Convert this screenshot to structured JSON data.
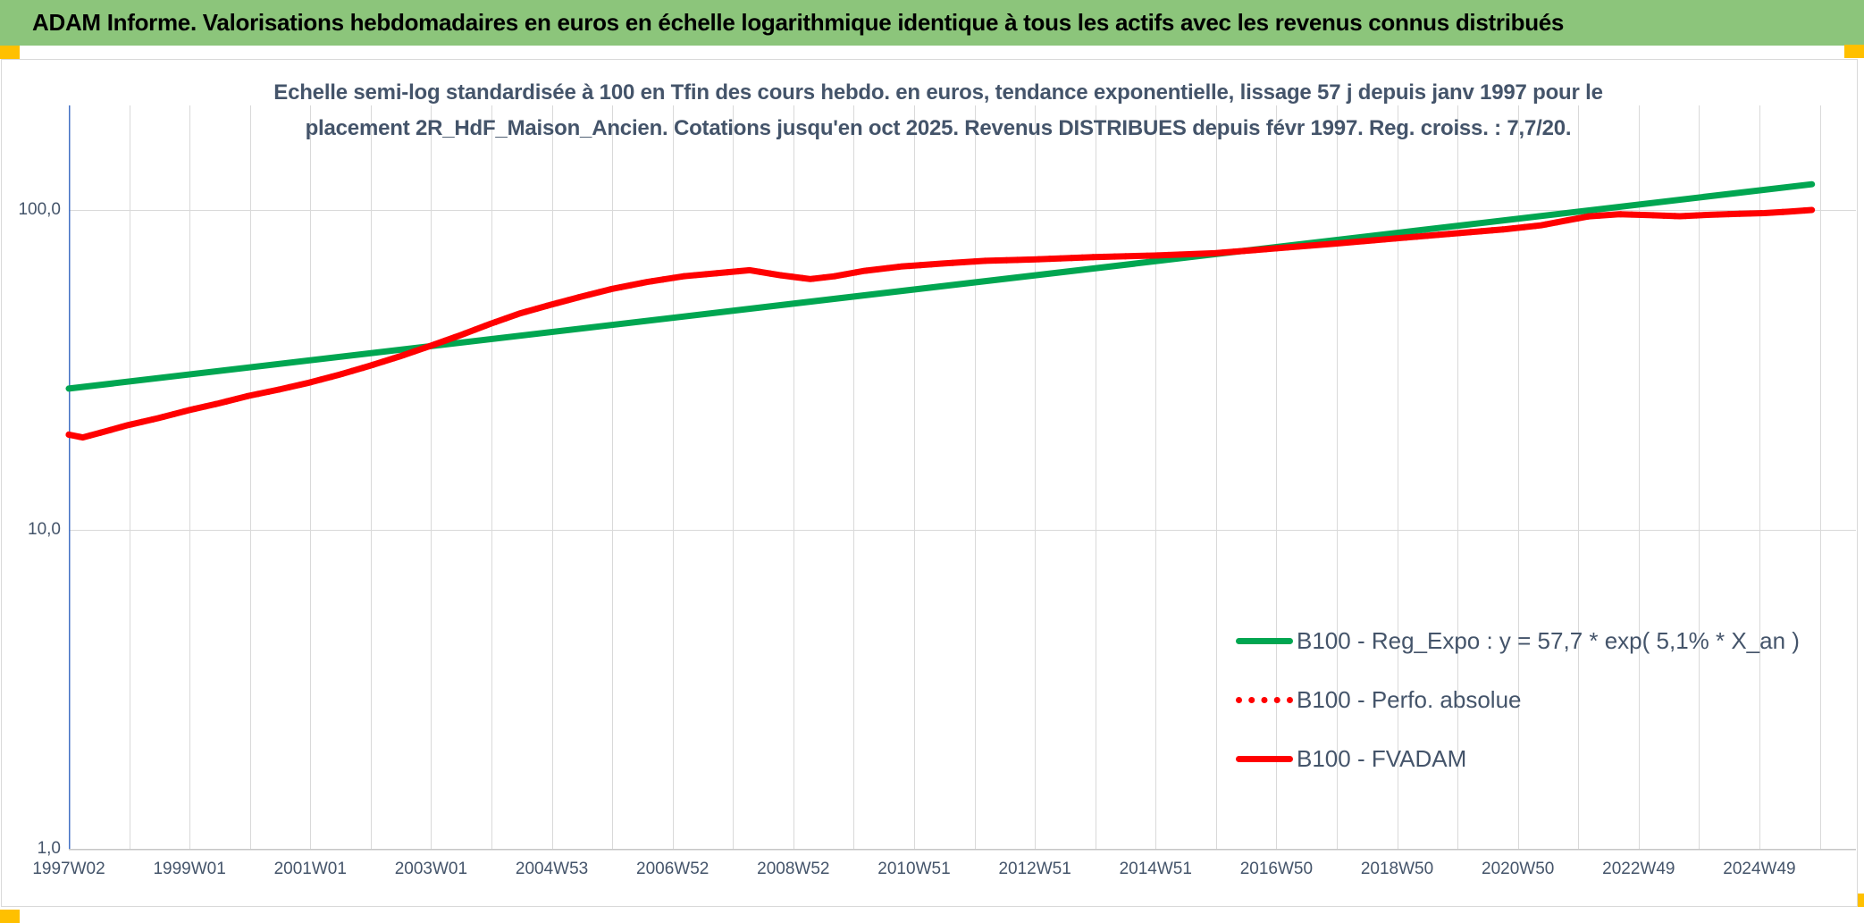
{
  "header": {
    "title": "ADAM Informe. Valorisations hebdomadaires en euros en échelle logarithmique identique à tous les actifs avec les revenus connus distribués"
  },
  "colors": {
    "header_bar": "#8CC57B",
    "corner_marker_gold": "#FFC000",
    "chart_text": "#44546A",
    "gridline": "#D9D9D9",
    "y_axis_line": "#4472C4",
    "baseline": "#C6C6C6",
    "regression_green": "#00A651",
    "series_red": "#FF0000"
  },
  "chart_data": {
    "type": "line",
    "title_line1": "Echelle semi-log standardisée à 100 en Tfin des cours hebdo. en euros, tendance exponentielle, lissage 57 j depuis janv 1997 pour le",
    "title_line2": "placement 2R_HdF_Maison_Ancien. Cotations jusqu'en oct 2025. Revenus DISTRIBUES depuis févr 1997. Reg. croiss. : 7,7/20.",
    "y_axis": {
      "scale": "log",
      "range": [
        1,
        200
      ],
      "ticks": [
        {
          "label": "100,0",
          "value": 100
        },
        {
          "label": "10,0",
          "value": 10
        },
        {
          "label": "1,0",
          "value": 1
        }
      ]
    },
    "x_axis": {
      "start_year": 1997.02,
      "end_year": 2025.89,
      "gridlines": "yearly",
      "tick_labels": [
        "1997W02",
        "1999W01",
        "2001W01",
        "2003W01",
        "2004W53",
        "2006W52",
        "2008W52",
        "2010W51",
        "2012W51",
        "2014W51",
        "2016W50",
        "2018W50",
        "2020W50",
        "2022W49",
        "2024W49"
      ],
      "tick_years": [
        1997,
        1999,
        2001,
        2003,
        2005,
        2007,
        2009,
        2011,
        2013,
        2015,
        2017,
        2019,
        2021,
        2023,
        2025
      ]
    },
    "legend_position": "lower-right-inside",
    "series": [
      {
        "name": "B100 - Reg_Expo : y = 57,7 * exp( 5,1% *  X_an )",
        "color": "#00A651",
        "style": "solid",
        "points": [
          [
            1997.02,
            27.6
          ],
          [
            2025.89,
            120.4
          ]
        ]
      },
      {
        "name": "B100 - Perfo. absolue",
        "color": "#FF0000",
        "style": "dotted",
        "coincides_with": "B100 - FVADAM"
      },
      {
        "name": "B100 - FVADAM",
        "color": "#FF0000",
        "style": "solid",
        "points": [
          [
            1997.02,
            19.8
          ],
          [
            1997.25,
            19.4
          ],
          [
            1997.6,
            20.2
          ],
          [
            1998,
            21.2
          ],
          [
            1998.5,
            22.3
          ],
          [
            1999,
            23.6
          ],
          [
            1999.5,
            24.8
          ],
          [
            2000,
            26.2
          ],
          [
            2000.5,
            27.4
          ],
          [
            2001,
            28.8
          ],
          [
            2001.5,
            30.5
          ],
          [
            2002,
            32.5
          ],
          [
            2002.5,
            34.8
          ],
          [
            2003,
            37.5
          ],
          [
            2003.5,
            40.5
          ],
          [
            2004,
            44
          ],
          [
            2004.5,
            47.5
          ],
          [
            2005,
            50.5
          ],
          [
            2005.5,
            53.5
          ],
          [
            2006,
            56.5
          ],
          [
            2006.6,
            59.5
          ],
          [
            2007.2,
            62
          ],
          [
            2007.8,
            63.5
          ],
          [
            2008.3,
            64.8
          ],
          [
            2008.8,
            62.5
          ],
          [
            2009.3,
            60.8
          ],
          [
            2009.7,
            62
          ],
          [
            2010.2,
            64.5
          ],
          [
            2010.8,
            66.5
          ],
          [
            2011.5,
            68
          ],
          [
            2012.2,
            69.3
          ],
          [
            2013,
            70
          ],
          [
            2014,
            71.2
          ],
          [
            2015,
            72
          ],
          [
            2016,
            73.2
          ],
          [
            2016.4,
            74.2
          ],
          [
            2017,
            75.8
          ],
          [
            2018,
            78.5
          ],
          [
            2019,
            81.5
          ],
          [
            2020,
            84.5
          ],
          [
            2020.8,
            87
          ],
          [
            2021.4,
            89.5
          ],
          [
            2021.8,
            92.5
          ],
          [
            2022.2,
            95.5
          ],
          [
            2022.7,
            97
          ],
          [
            2023.2,
            96.4
          ],
          [
            2023.7,
            95.6
          ],
          [
            2024.2,
            96.6
          ],
          [
            2024.7,
            97.3
          ],
          [
            2025.1,
            97.8
          ],
          [
            2025.5,
            98.8
          ],
          [
            2025.89,
            100
          ]
        ]
      }
    ]
  }
}
